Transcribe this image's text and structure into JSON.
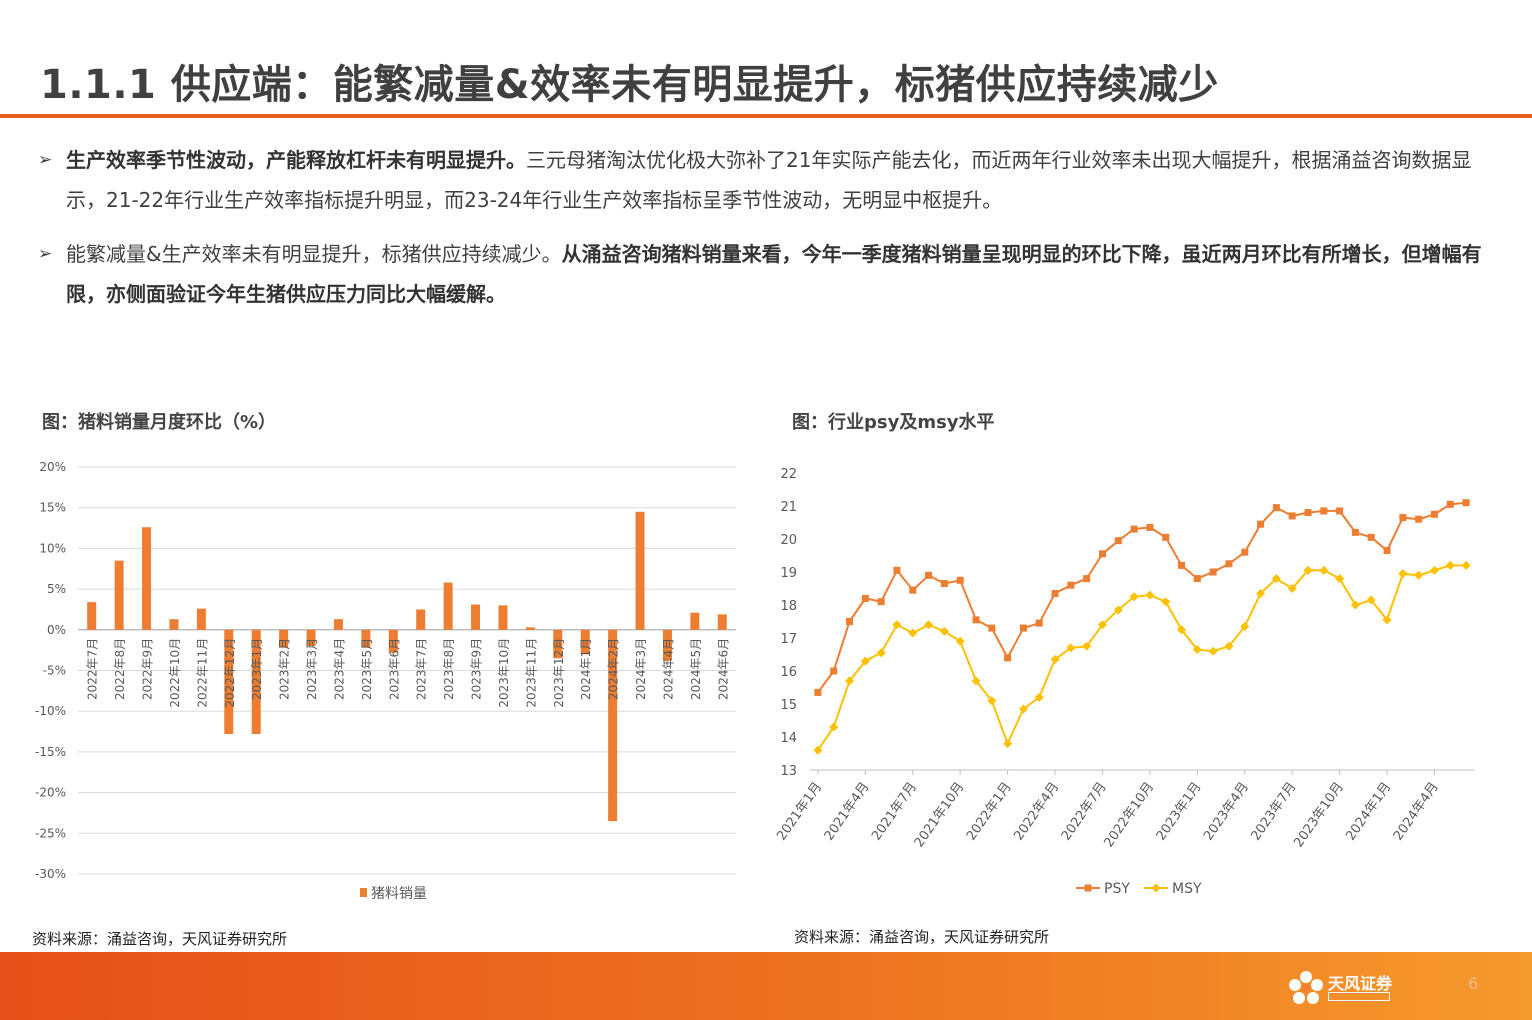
{
  "title": "1.1.1 供应端：能繁减量&效率未有明显提升，标猪供应持续减少",
  "bullets": [
    {
      "bold": "生产效率季节性波动，产能释放杠杆未有明显提升。",
      "rest": "三元母猪淘汰优化极大弥补了21年实际产能去化，而近两年行业效率未出现大幅提升，根据涌益咨询数据显示，21-22年行业生产效率指标提升明显，而23-24年行业生产效率指标呈季节性波动，无明显中枢提升。"
    },
    {
      "normal": "能繁减量&生产效率未有明显提升，标猪供应持续减少。",
      "bold2": "从涌益咨询猪料销量来看，今年一季度猪料销量呈现明显的环比下降，虽近两月环比有所增长，但增幅有限，亦侧面验证今年生猪供应压力同比大幅缓解。"
    }
  ],
  "left_chart_title": "图：猪料销量月度环比（%）",
  "right_chart_title": "图：行业psy及msy水平",
  "source_left": "资料来源：涌益咨询，天风证券研究所",
  "source_right": "资料来源：涌益咨询，天风证券研究所",
  "brand": "天风证券",
  "page_number": "6",
  "colors": {
    "accent": "#e8601c",
    "bar": "#ed7d31",
    "psy": "#ed7d31",
    "msy": "#ffc000"
  },
  "chart_data": [
    {
      "type": "bar",
      "categories": [
        "2022年7月",
        "2022年8月",
        "2022年9月",
        "2022年10月",
        "2022年11月",
        "2022年12月",
        "2023年1月",
        "2023年2月",
        "2023年3月",
        "2023年4月",
        "2023年5月",
        "2023年6月",
        "2023年7月",
        "2023年8月",
        "2023年9月",
        "2023年10月",
        "2023年11月",
        "2023年12月",
        "2024年1月",
        "2024年2月",
        "2024年3月",
        "2024年4月",
        "2024年5月",
        "2024年6月"
      ],
      "series": [
        {
          "name": "猪料销量",
          "values": [
            3.4,
            8.5,
            12.6,
            1.3,
            2.6,
            -12.8,
            -12.8,
            -2.2,
            -2.0,
            1.3,
            -2.2,
            -2.8,
            2.5,
            5.8,
            3.1,
            3.0,
            0.3,
            -3.5,
            -3.0,
            -23.5,
            14.5,
            -3.8,
            2.1,
            1.9
          ]
        }
      ],
      "yticks": [
        "20%",
        "15%",
        "10%",
        "5%",
        "0%",
        "-5%",
        "-10%",
        "-15%",
        "-20%",
        "-25%",
        "-30%"
      ],
      "ylim": [
        -30,
        20
      ],
      "grid": true,
      "legend": "bottom"
    },
    {
      "type": "line",
      "x": [
        "2021年1月",
        "2021年2月",
        "2021年3月",
        "2021年4月",
        "2021年5月",
        "2021年6月",
        "2021年7月",
        "2021年8月",
        "2021年9月",
        "2021年10月",
        "2021年11月",
        "2021年12月",
        "2022年1月",
        "2022年2月",
        "2022年3月",
        "2022年4月",
        "2022年5月",
        "2022年6月",
        "2022年7月",
        "2022年8月",
        "2022年9月",
        "2022年10月",
        "2022年11月",
        "2022年12月",
        "2023年1月",
        "2023年2月",
        "2023年3月",
        "2023年4月",
        "2023年5月",
        "2023年6月",
        "2023年7月",
        "2023年8月",
        "2023年9月",
        "2023年10月",
        "2023年11月",
        "2023年12月",
        "2024年1月",
        "2024年2月",
        "2024年3月",
        "2024年4月",
        "2024年5月",
        "2024年6月"
      ],
      "xtick_labels": [
        "2021年1月",
        "2021年4月",
        "2021年7月",
        "2021年10月",
        "2022年1月",
        "2022年4月",
        "2022年7月",
        "2022年10月",
        "2023年1月",
        "2023年4月",
        "2023年7月",
        "2023年10月",
        "2024年1月",
        "2024年4月"
      ],
      "series": [
        {
          "name": "PSY",
          "values": [
            15.35,
            16.0,
            17.5,
            18.2,
            18.1,
            19.05,
            18.45,
            18.9,
            18.65,
            18.75,
            17.55,
            17.3,
            16.4,
            17.3,
            17.45,
            18.35,
            18.6,
            18.8,
            19.55,
            19.95,
            20.3,
            20.35,
            20.05,
            19.2,
            18.8,
            19.0,
            19.25,
            19.6,
            20.45,
            20.95,
            20.7,
            20.8,
            20.85,
            20.85,
            20.2,
            20.05,
            19.65,
            20.65,
            20.6,
            20.75,
            21.05,
            21.1
          ]
        },
        {
          "name": "MSY",
          "values": [
            13.6,
            14.3,
            15.7,
            16.3,
            16.55,
            17.4,
            17.15,
            17.4,
            17.2,
            16.9,
            15.7,
            15.1,
            13.8,
            14.85,
            15.2,
            16.35,
            16.7,
            16.75,
            17.4,
            17.85,
            18.25,
            18.3,
            18.1,
            17.25,
            16.65,
            16.6,
            16.75,
            17.35,
            18.35,
            18.8,
            18.5,
            19.05,
            19.05,
            18.8,
            18.0,
            18.15,
            17.55,
            18.95,
            18.9,
            19.05,
            19.2,
            19.2
          ]
        }
      ],
      "yticks": [
        "22",
        "21",
        "20",
        "19",
        "18",
        "17",
        "16",
        "15",
        "14",
        "13"
      ],
      "ylim": [
        13,
        22
      ],
      "grid": false,
      "legend": "bottom"
    }
  ]
}
